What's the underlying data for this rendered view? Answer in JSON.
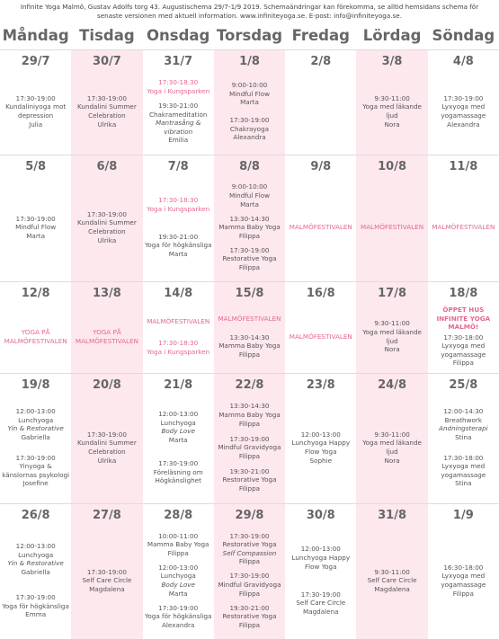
{
  "header": {
    "text": "Infinite Yoga Malmö, Gustav Adolfs torg 43. Augustischema 29/7-1/9 2019. Schemaändringar kan förekomma, se alltid hemsidans schema för senaste versionen med aktuell information. www.infiniteyoga.se. E-post: info@infiniteyoga.se."
  },
  "days": [
    "Måndag",
    "Tisdag",
    "Onsdag",
    "Torsdag",
    "Fredag",
    "Lördag",
    "Söndag"
  ],
  "weeks": [
    [
      {
        "date": "29/7",
        "events": [
          {
            "time": "17:30-19:00",
            "title": "Kundaliniyoga mot depression",
            "teacher": "Julia"
          }
        ]
      },
      {
        "date": "30/7",
        "events": [
          {
            "time": "17:30-19:00",
            "title": "Kundalini Summer Celebration",
            "teacher": "Ulrika"
          }
        ]
      },
      {
        "date": "31/7",
        "events": [
          {
            "time": "17:30-18:30",
            "title": "Yoga i Kungsparken",
            "highlight": true
          },
          {
            "time": "19:30-21:00",
            "title": "Chakrameditation",
            "note": "Mantrasång & vibration",
            "teacher": "Emilia"
          }
        ]
      },
      {
        "date": "1/8",
        "events": [
          {
            "time": "9:00-10:00",
            "title": "Mindful Flow",
            "teacher": "Marta"
          },
          {
            "time": "17:30-19:00",
            "title": "Chakrayoga",
            "teacher": "Alexandra"
          }
        ]
      },
      {
        "date": "2/8",
        "events": []
      },
      {
        "date": "3/8",
        "events": [
          {
            "time": "9:30-11:00",
            "title": "Yoga med läkande ljud",
            "teacher": "Nora"
          }
        ]
      },
      {
        "date": "4/8",
        "events": [
          {
            "time": "17:30-19:00",
            "title": "Lyxyoga med yogamassage",
            "teacher": "Alexandra"
          }
        ]
      }
    ],
    [
      {
        "date": "5/8",
        "events": [
          {
            "time": "17:30-19:00",
            "title": "Mindful Flow",
            "teacher": "Marta"
          }
        ]
      },
      {
        "date": "6/8",
        "events": [
          {
            "time": "17:30-19:00",
            "title": "Kundalini Summer Celebration",
            "teacher": "Ulrika"
          }
        ]
      },
      {
        "date": "7/8",
        "events": [
          {
            "time": "17:30-18:30",
            "title": "Yoga i Kungsparken",
            "highlight": true
          },
          {
            "time": "19:30-21:00",
            "title": "Yoga för högkänsliga",
            "teacher": "Marta"
          }
        ]
      },
      {
        "date": "8/8",
        "events": [
          {
            "time": "9:00-10:00",
            "title": "Mindful Flow",
            "teacher": "Marta"
          },
          {
            "time": "13:30-14:30",
            "title": "Mamma Baby Yoga",
            "teacher": "Filippa"
          },
          {
            "time": "17:30-19:00",
            "title": "Restorative Yoga",
            "teacher": "Filippa"
          }
        ]
      },
      {
        "date": "9/8",
        "events": [
          {
            "title": "MALMÖFESTIVALEN",
            "highlight": true
          }
        ]
      },
      {
        "date": "10/8",
        "events": [
          {
            "title": "MALMÖFESTIVALEN",
            "highlight": true
          }
        ]
      },
      {
        "date": "11/8",
        "events": [
          {
            "title": "MALMÖFESTIVALEN",
            "highlight": true
          }
        ]
      }
    ],
    [
      {
        "date": "12/8",
        "events": [
          {
            "title": "YOGA PÅ MALMÖFESTIVALEN",
            "highlight": true
          }
        ]
      },
      {
        "date": "13/8",
        "events": [
          {
            "title": "YOGA PÅ MALMÖFESTIVALEN",
            "highlight": true
          }
        ]
      },
      {
        "date": "14/8",
        "events": [
          {
            "title": "MALMÖFESTIVALEN",
            "highlight": true
          },
          {
            "time": "17:30-18:30",
            "title": "Yoga i Kungsparken",
            "highlight": true
          }
        ]
      },
      {
        "date": "15/8",
        "events": [
          {
            "title": "MALMÖFESTIVALEN",
            "highlight": true
          },
          {
            "time": "13:30-14:30",
            "title": "Mamma Baby Yoga",
            "teacher": "Filippa"
          }
        ]
      },
      {
        "date": "16/8",
        "events": [
          {
            "title": "MALMÖFESTIVALEN",
            "highlight": true
          }
        ]
      },
      {
        "date": "17/8",
        "events": [
          {
            "time": "9:30-11:00",
            "title": "Yoga med läkande ljud",
            "teacher": "Nora"
          }
        ]
      },
      {
        "date": "18/8",
        "events": [
          {
            "title": "ÖPPET HUS INFINITE YOGA MALMÖ!",
            "highlight": true,
            "strong": true
          },
          {
            "time": "17:30-18:00",
            "title": "Lyxyoga med yogamassage",
            "teacher": "Filippa"
          }
        ]
      }
    ],
    [
      {
        "date": "19/8",
        "events": [
          {
            "time": "12:00-13:00",
            "title": "Lunchyoga",
            "note": "Yin & Restorative",
            "teacher": "Gabriella"
          },
          {
            "time": "17:30-19:00",
            "title": "Yinyoga & känslornas psykologi",
            "teacher": "Josefine"
          }
        ]
      },
      {
        "date": "20/8",
        "events": [
          {
            "time": "17:30-19:00",
            "title": "Kundalini Summer Celebration",
            "teacher": "Ulrika"
          }
        ]
      },
      {
        "date": "21/8",
        "events": [
          {
            "time": "12:00-13:00",
            "title": "Lunchyoga",
            "note": "Body Love",
            "teacher": "Marta"
          },
          {
            "time": "17:30-19:00",
            "title": "Föreläsning om Högkänslighet"
          }
        ]
      },
      {
        "date": "22/8",
        "events": [
          {
            "time": "13:30-14:30",
            "title": "Mamma Baby Yoga",
            "teacher": "Filippa"
          },
          {
            "time": "17:30-19:00",
            "title": "Mindful Gravidyoga",
            "teacher": "Filippa"
          },
          {
            "time": "19:30-21:00",
            "title": "Restorative Yoga",
            "teacher": "Filippa"
          }
        ]
      },
      {
        "date": "23/8",
        "events": [
          {
            "time": "12:00-13:00",
            "title": "Lunchyoga Happy Flow Yoga",
            "teacher": "Sophie"
          }
        ]
      },
      {
        "date": "24/8",
        "events": [
          {
            "time": "9:30-11:00",
            "title": "Yoga med läkande ljud",
            "teacher": "Nora"
          }
        ]
      },
      {
        "date": "25/8",
        "events": [
          {
            "time": "12:00-14:30",
            "title": "Breathwork",
            "note": "Andningsterapi",
            "teacher": "Stina"
          },
          {
            "time": "17:30-18:00",
            "title": "Lyxyoga med yogamassage",
            "teacher": "Stina"
          }
        ]
      }
    ],
    [
      {
        "date": "26/8",
        "events": [
          {
            "time": "12:00-13:00",
            "title": "Lunchyoga",
            "note": "Yin & Restorative",
            "teacher": "Gabriella"
          },
          {
            "time": "17:30-19:00",
            "title": "Yoga för högkänsliga",
            "teacher": "Emma"
          }
        ]
      },
      {
        "date": "27/8",
        "events": [
          {
            "time": "17:30-19:00",
            "title": "Self Care Circle",
            "teacher": "Magdalena"
          }
        ]
      },
      {
        "date": "28/8",
        "events": [
          {
            "time": "10:00-11:00",
            "title": "Mamma Baby Yoga",
            "teacher": "Filippa"
          },
          {
            "time": "12:00-13:00",
            "title": "Lunchyoga",
            "note": "Body Love",
            "teacher": "Marta"
          },
          {
            "time": "17:30-19:00",
            "title": "Yoga för högkänsliga",
            "teacher": "Alexandra"
          }
        ]
      },
      {
        "date": "29/8",
        "events": [
          {
            "time": "17:30-19:00",
            "title": "Restorative Yoga",
            "note": "Self Compassion",
            "teacher": "Filippa"
          },
          {
            "time": "17:30-19:00",
            "title": "Mindful Gravidyoga",
            "teacher": "Filippa"
          },
          {
            "time": "19:30-21:00",
            "title": "Restorative Yoga",
            "teacher": "Filippa"
          }
        ]
      },
      {
        "date": "30/8",
        "events": [
          {
            "time": "12:00-13:00",
            "title": "Lunchyoga Happy Flow Yoga"
          },
          {
            "time": "17:30-19:00",
            "title": "Self Care Circle",
            "teacher": "Magdalena"
          }
        ]
      },
      {
        "date": "31/8",
        "events": [
          {
            "time": "9:30-11:00",
            "title": "Self Care Circle",
            "teacher": "Magdalena"
          }
        ]
      },
      {
        "date": "1/9",
        "events": [
          {
            "time": "16:30-18:00",
            "title": "Lyxyoga med yogamassage",
            "teacher": "Filippa"
          }
        ]
      }
    ]
  ]
}
